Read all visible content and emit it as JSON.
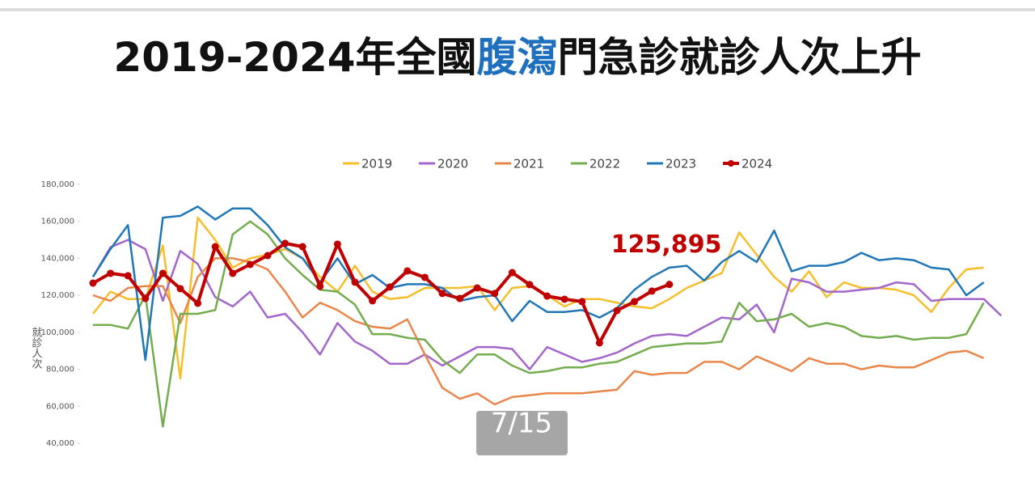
{
  "page_indicator": "7/15",
  "chart_data": {
    "type": "line",
    "title": {
      "before": "2019-2024年全國",
      "highlight": "腹瀉",
      "after": "門急診就診人次上升"
    },
    "ylabel": "就診人次",
    "ylim": [
      40000,
      180000
    ],
    "yticks": [
      {
        "value": 40000,
        "label": "40,000"
      },
      {
        "value": 60000,
        "label": "60,000"
      },
      {
        "value": 80000,
        "label": "80,000"
      },
      {
        "value": 100000,
        "label": "100,000"
      },
      {
        "value": 120000,
        "label": "120,000"
      },
      {
        "value": 140000,
        "label": "140,000"
      },
      {
        "value": 160000,
        "label": "160,000"
      },
      {
        "value": 180000,
        "label": "180,000"
      }
    ],
    "grid": false,
    "legend": "top",
    "series": [
      {
        "name": "2019",
        "color": "#f5be2a",
        "values": [
          110000,
          122000,
          118000,
          118000,
          147000,
          75000,
          162000,
          150000,
          135000,
          140000,
          142000,
          145000,
          140000,
          130000,
          122000,
          136000,
          122000,
          118000,
          119000,
          124000,
          124000,
          124000,
          125000,
          112000,
          124000,
          125000,
          120000,
          114000,
          118000,
          118000,
          116000,
          114000,
          113000,
          118000,
          124000,
          128000,
          132000,
          154000,
          142000,
          130000,
          122000,
          133000,
          119000,
          127000,
          124000,
          124000,
          123000,
          120000,
          111000,
          124000,
          134000,
          135000
        ]
      },
      {
        "name": "2020",
        "color": "#a366c9",
        "values": [
          130000,
          146000,
          150000,
          145000,
          117000,
          144000,
          137000,
          119000,
          114000,
          122000,
          108000,
          110000,
          100000,
          88000,
          105000,
          95000,
          90000,
          83000,
          83000,
          88000,
          82000,
          87000,
          92000,
          92000,
          91000,
          80000,
          92000,
          88000,
          84000,
          86000,
          89000,
          94000,
          98000,
          99000,
          98000,
          103000,
          108000,
          107000,
          115000,
          100000,
          129000,
          127000,
          122000,
          122000,
          123000,
          124000,
          127000,
          126000,
          117000,
          118000,
          118000,
          118000,
          109000
        ]
      },
      {
        "name": "2021",
        "color": "#e9874b",
        "values": [
          120000,
          117000,
          124000,
          125000,
          125000,
          105000,
          130000,
          140000,
          140000,
          138000,
          134000,
          122000,
          108000,
          116000,
          112000,
          106000,
          103000,
          102000,
          107000,
          88000,
          70000,
          64000,
          67000,
          61000,
          65000,
          66000,
          67000,
          67000,
          67000,
          68000,
          69000,
          79000,
          77000,
          78000,
          78000,
          84000,
          84000,
          80000,
          87000,
          83000,
          79000,
          86000,
          83000,
          83000,
          80000,
          82000,
          81000,
          81000,
          85000,
          89000,
          90000,
          86000
        ]
      },
      {
        "name": "2022",
        "color": "#73ad4e",
        "values": [
          104000,
          104000,
          102000,
          120000,
          49000,
          110000,
          110000,
          112000,
          153000,
          160000,
          153000,
          140000,
          131000,
          123000,
          122000,
          115000,
          99000,
          99000,
          97000,
          96000,
          85000,
          78000,
          88000,
          88000,
          82000,
          78000,
          79000,
          81000,
          81000,
          83000,
          84000,
          88000,
          92000,
          93000,
          94000,
          94000,
          95000,
          116000,
          106000,
          107000,
          110000,
          103000,
          105000,
          103000,
          98000,
          97000,
          98000,
          96000,
          97000,
          97000,
          99000,
          116000
        ]
      },
      {
        "name": "2023",
        "color": "#2177b6",
        "values": [
          130000,
          145000,
          158000,
          85000,
          162000,
          163000,
          168000,
          161000,
          167000,
          167000,
          158000,
          146000,
          140000,
          127000,
          140000,
          126000,
          131000,
          124000,
          126000,
          126000,
          124000,
          117000,
          119000,
          120000,
          106000,
          117000,
          111000,
          111000,
          112000,
          108000,
          113000,
          123000,
          130000,
          135000,
          136000,
          128000,
          138000,
          144000,
          138000,
          155000,
          133000,
          136000,
          136000,
          138000,
          143000,
          139000,
          140000,
          139000,
          135000,
          134000,
          120000,
          127000
        ]
      },
      {
        "name": "2024",
        "color": "#c00000",
        "markers": true,
        "values": [
          126600,
          131900,
          130600,
          118300,
          131900,
          123600,
          115700,
          146300,
          131900,
          136700,
          141500,
          148100,
          146300,
          124900,
          147700,
          127100,
          117000,
          124500,
          133200,
          129700,
          121000,
          118300,
          124000,
          121000,
          132300,
          125800,
          119600,
          117900,
          116600,
          94300,
          111800,
          116600,
          122300,
          125895
        ],
        "value_labels": [
          null,
          null,
          null,
          null,
          null,
          null,
          null,
          null,
          null,
          null,
          null,
          null,
          null,
          null,
          null,
          null,
          null,
          null,
          null,
          null,
          null,
          null,
          null,
          null,
          null,
          null,
          null,
          null,
          null,
          null,
          null,
          null,
          null,
          "125,895"
        ]
      }
    ]
  }
}
